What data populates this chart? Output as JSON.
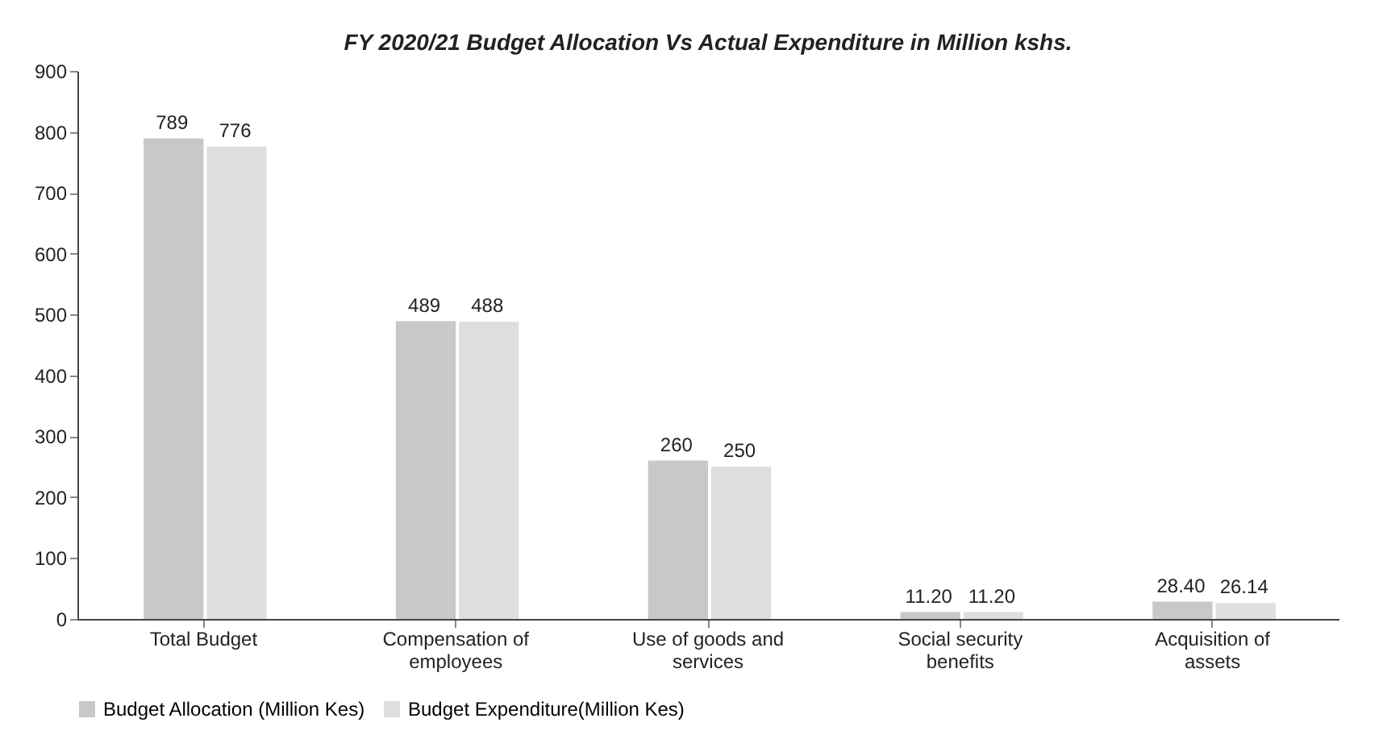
{
  "chart_data": {
    "type": "bar",
    "title": "FY 2020/21 Budget Allocation Vs Actual Expenditure in Million kshs.",
    "categories": [
      "Total Budget",
      "Compensation of employees",
      "Use of goods and services",
      "Social security benefits",
      "Acquisition of assets"
    ],
    "series": [
      {
        "name": "Budget Allocation (Million Kes)",
        "color": "#c8c8c8",
        "values": [
          789,
          489,
          260,
          11.2,
          28.4
        ],
        "value_labels": [
          "789",
          "489",
          "260",
          "11.20",
          "28.40"
        ]
      },
      {
        "name": "Budget Expenditure(Million Kes)",
        "color": "#dedede",
        "values": [
          776,
          488,
          250,
          11.2,
          26.14
        ],
        "value_labels": [
          "776",
          "488",
          "250",
          "11.20",
          "26.14"
        ]
      }
    ],
    "ylim": [
      0,
      900
    ],
    "yticks": [
      0,
      100,
      200,
      300,
      400,
      500,
      600,
      700,
      800,
      900
    ],
    "grid": false,
    "legend": "bottom"
  }
}
